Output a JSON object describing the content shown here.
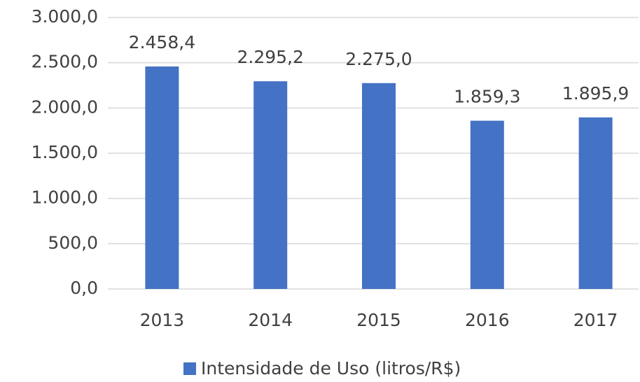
{
  "chart_data": {
    "type": "bar",
    "categories": [
      "2013",
      "2014",
      "2015",
      "2016",
      "2017"
    ],
    "series": [
      {
        "name": "Intensidade de Uso (litros/R$)",
        "color": "#4472c4",
        "values": [
          2458.4,
          2295.2,
          2275.0,
          1859.3,
          1895.9
        ],
        "value_labels": [
          "2.458,4",
          "2.295,2",
          "2.275,0",
          "1.859,3",
          "1.895,9"
        ]
      }
    ],
    "ylim": [
      0,
      3000
    ],
    "yticks": [
      {
        "value": 0,
        "label": "0,0"
      },
      {
        "value": 500,
        "label": "500,0"
      },
      {
        "value": 1000,
        "label": "1.000,0"
      },
      {
        "value": 1500,
        "label": "1.500,0"
      },
      {
        "value": 2000,
        "label": "2.000,0"
      },
      {
        "value": 2500,
        "label": "2.500,0"
      },
      {
        "value": 3000,
        "label": "3.000,0"
      }
    ],
    "grid": true,
    "legend": "bottom"
  }
}
